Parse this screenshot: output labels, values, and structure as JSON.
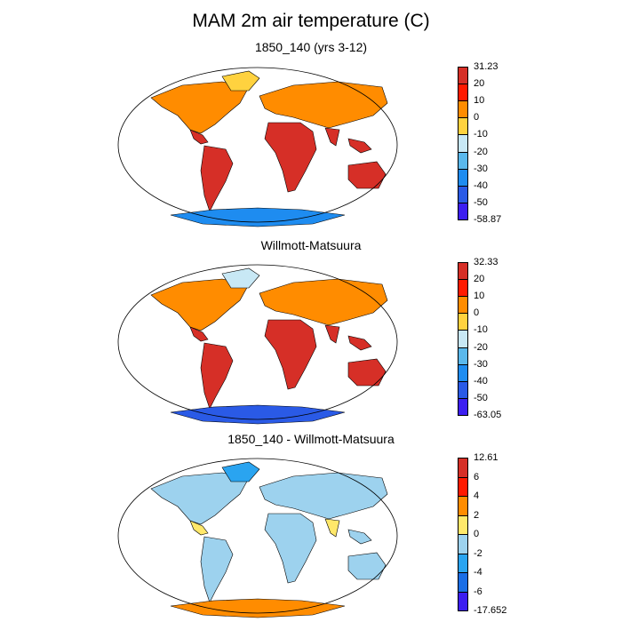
{
  "title": "MAM 2m air temperature (C)",
  "panels": [
    {
      "title": "1850_140 (yrs 3-12)",
      "colorbar": {
        "labels": [
          "31.23",
          "20",
          "10",
          "0",
          "-10",
          "-20",
          "-30",
          "-40",
          "-50",
          "-58.87"
        ],
        "colors": [
          "#d62f27",
          "#ff1a00",
          "#ff8c00",
          "#ffd23f",
          "#c8e8f5",
          "#5ab8ec",
          "#1e8cf0",
          "#2a5ae6",
          "#3c1ef0"
        ]
      }
    },
    {
      "title": "Willmott-Matsuura",
      "colorbar": {
        "labels": [
          "32.33",
          "20",
          "10",
          "0",
          "-10",
          "-20",
          "-30",
          "-40",
          "-50",
          "-63.05"
        ],
        "colors": [
          "#d62f27",
          "#ff1a00",
          "#ff8c00",
          "#ffd23f",
          "#c8e8f5",
          "#5ab8ec",
          "#1e8cf0",
          "#2a5ae6",
          "#3c1ef0"
        ]
      }
    },
    {
      "title": "1850_140 - Willmott-Matsuura",
      "colorbar": {
        "labels": [
          "12.61",
          "6",
          "4",
          "2",
          "0",
          "-2",
          "-4",
          "-6",
          "-17.652"
        ],
        "colors": [
          "#d62f27",
          "#ff1a00",
          "#ff8c00",
          "#ffe86a",
          "#9dd2ee",
          "#2aa4f0",
          "#1a6ee6",
          "#3c1ef0"
        ]
      }
    }
  ]
}
